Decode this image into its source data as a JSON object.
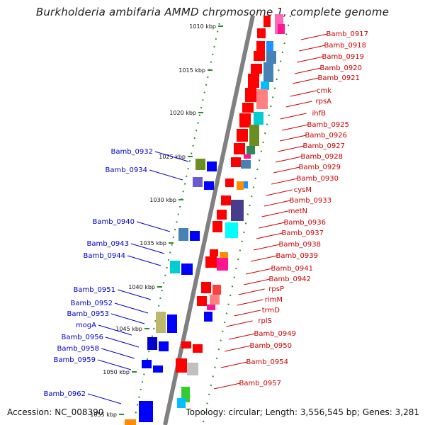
{
  "title": "Burkholderia ambifaria AMMD chromosome 1, complete genome",
  "accession": "Accession: NC_008390",
  "summary": "Topology: circular; Length: 3,556,545 bp; Genes: 3,281",
  "colors": {
    "backbone": "#808080",
    "ticks": "#2e8b2e",
    "forward_genes": "#0000ff",
    "reverse_genes": "#ff0000",
    "label_forward": "#0000cc",
    "label_reverse": "#cc0000"
  },
  "kbp_ticks": [
    "1010 kbp",
    "1015 kbp",
    "1020 kbp",
    "1025 kbp",
    "1030 kbp",
    "1035 kbp",
    "1040 kbp",
    "1045 kbp",
    "1050 kbp",
    "1055 kbp"
  ],
  "reverse_labels": [
    "Bamb_0917",
    "Bamb_0918",
    "Bamb_0919",
    "Bamb_0920",
    "Bamb_0921",
    "cmk",
    "rpsA",
    "ihfB",
    "Bamb_0925",
    "Bamb_0926",
    "Bamb_0927",
    "Bamb_0928",
    "Bamb_0929",
    "Bamb_0930",
    "cysM",
    "Bamb_0933",
    "metN",
    "Bamb_0936",
    "Bamb_0937",
    "Bamb_0938",
    "Bamb_0939",
    "Bamb_0941",
    "Bamb_0942",
    "rpsP",
    "rimM",
    "trmD",
    "rplS",
    "Bamb_0949",
    "Bamb_0950",
    "Bamb_0954",
    "Bamb_0957"
  ],
  "forward_labels": [
    "Bamb_0932",
    "Bamb_0934",
    "Bamb_0940",
    "Bamb_0943",
    "Bamb_0944",
    "Bamb_0951",
    "Bamb_0952",
    "Bamb_0953",
    "mogA",
    "Bamb_0956",
    "Bamb_0958",
    "Bamb_0959",
    "Bamb_0962"
  ]
}
